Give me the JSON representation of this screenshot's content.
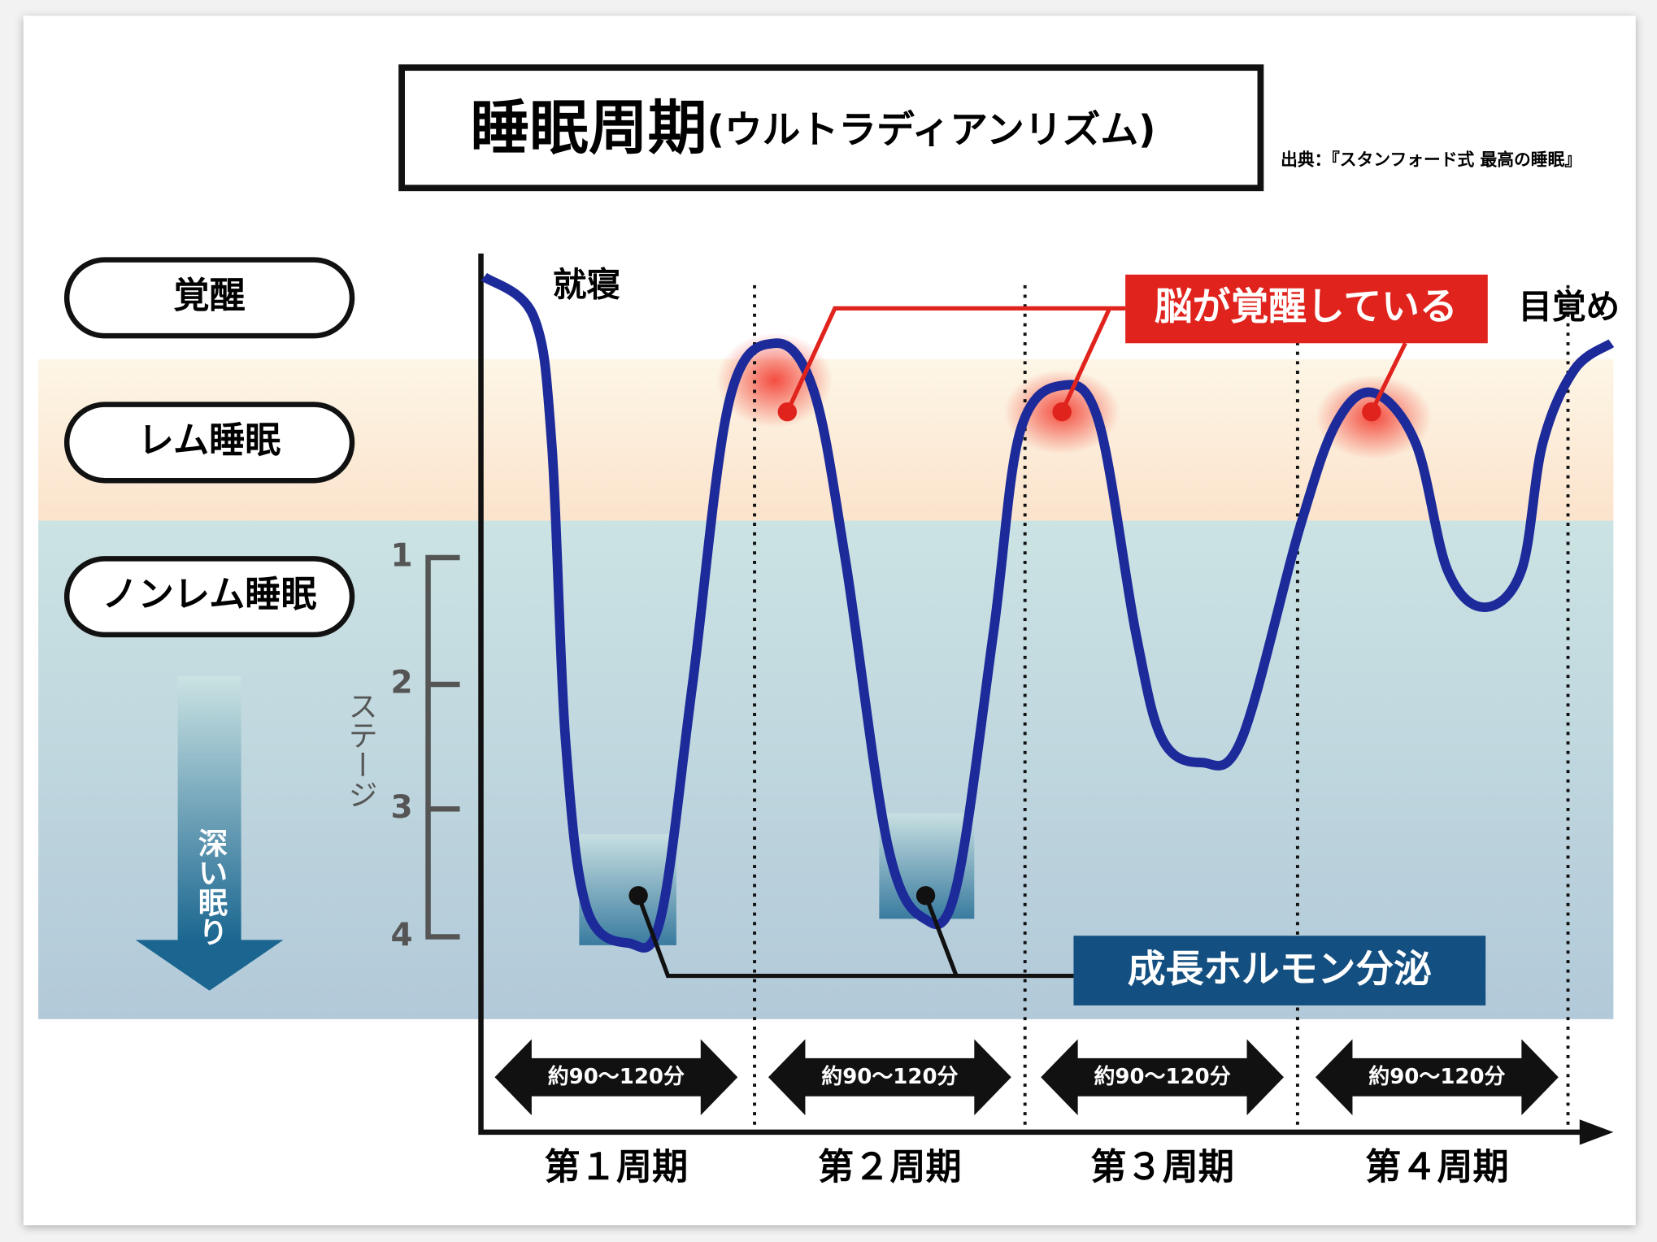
{
  "title": "睡眠周期",
  "title_sub": "(ウルトラディアンリズム)",
  "source": "出典：『スタンフォード式 最高の睡眠』",
  "states": [
    "覚醒",
    "レム睡眠",
    "ノンレム睡眠"
  ],
  "deep_sleep": "深い眠り",
  "stage_axis": {
    "label": "ステージ",
    "ticks": [
      "1",
      "2",
      "3",
      "4"
    ]
  },
  "annotations": {
    "sleep_onset": "就寝",
    "wake": "目覚め",
    "brain_awake": "脳が覚醒している",
    "growth_hormone": "成長ホルモン分泌"
  },
  "cycles": [
    {
      "label": "第１周期",
      "duration": "約90〜120分"
    },
    {
      "label": "第２周期",
      "duration": "約90〜120分"
    },
    {
      "label": "第３周期",
      "duration": "約90〜120分"
    },
    {
      "label": "第４周期",
      "duration": "約90〜120分"
    }
  ]
}
